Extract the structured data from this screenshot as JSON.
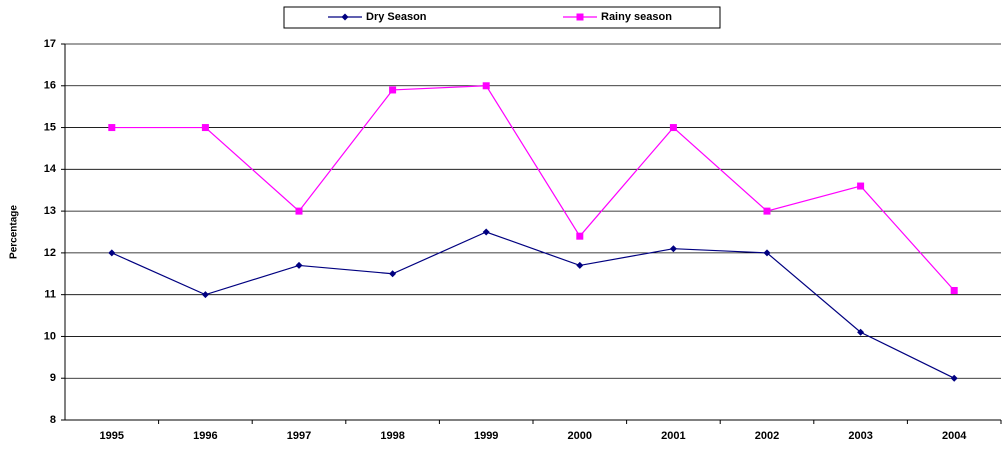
{
  "chart_data": {
    "type": "line",
    "y_label": "Percentage",
    "categories": [
      "1995",
      "1996",
      "1997",
      "1998",
      "1999",
      "2000",
      "2001",
      "2002",
      "2003",
      "2004"
    ],
    "series": [
      {
        "name": "Dry Season",
        "color": "#000080",
        "marker": "diamond",
        "values": [
          12,
          11,
          11.7,
          11.5,
          12.5,
          11.7,
          12.1,
          12,
          10.1,
          9
        ]
      },
      {
        "name": "Rainy season",
        "color": "#ff00ff",
        "marker": "square",
        "values": [
          15,
          15,
          13,
          15.9,
          16,
          12.4,
          15,
          13,
          13.6,
          11.1
        ]
      }
    ],
    "ylim": [
      8,
      17
    ],
    "yticks": [
      8,
      9,
      10,
      11,
      12,
      13,
      14,
      15,
      16,
      17
    ],
    "grid": true,
    "legend": "top"
  }
}
